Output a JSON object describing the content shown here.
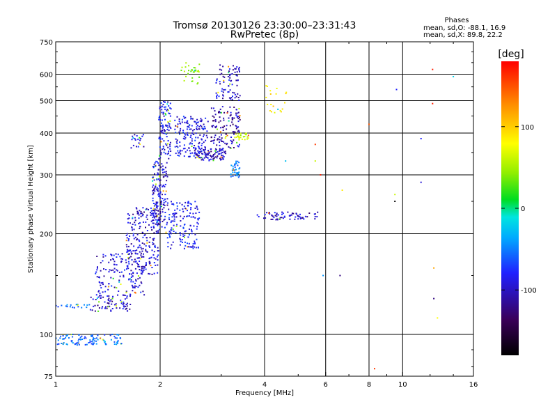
{
  "chart_data": {
    "type": "scatter",
    "title": "Tromsø 20130126 23:30:00–23:31:43",
    "subtitle": "RwPretec (8p)",
    "xlabel": "Frequency [MHz]",
    "ylabel": "Stationary phase Virtual Height [km]",
    "x_scale": "log",
    "y_scale": "log",
    "xlim": [
      1,
      16
    ],
    "ylim": [
      75,
      750
    ],
    "x_ticks": [
      1,
      2,
      4,
      6,
      8,
      10,
      16
    ],
    "y_ticks": [
      75,
      100,
      200,
      300,
      400,
      500,
      600,
      750
    ],
    "x_tick_labels": [
      "1",
      "2",
      "4",
      "6",
      "8",
      "10",
      "16"
    ],
    "y_tick_labels": [
      "75",
      "100",
      "200",
      "300",
      "400",
      "500",
      "600",
      "750"
    ],
    "grid": true,
    "phase_info": {
      "heading": "Phases",
      "line1": "mean, sd,O: -88.1, 16.9",
      "line2": "mean, sd,X:  89.8, 22.2"
    },
    "colorbar": {
      "label": "[deg]",
      "min": -180,
      "max": 180,
      "ticks": [
        100,
        0,
        -100
      ],
      "tick_labels": [
        "100",
        "0",
        "-100"
      ]
    },
    "series": [
      {
        "clusters": [
          {
            "x": [
              1.0,
              1.55
            ],
            "y": [
              93,
              100
            ],
            "n": 110,
            "phase": -75
          },
          {
            "x": [
              1.0,
              1.25
            ],
            "y": [
              120,
              123
            ],
            "n": 20,
            "phase": -75
          },
          {
            "x": [
              1.25,
              1.65
            ],
            "y": [
              117,
              130
            ],
            "n": 70,
            "phase": -115
          },
          {
            "x": [
              1.3,
              1.8
            ],
            "y": [
              130,
              175
            ],
            "n": 160,
            "phase": -110
          },
          {
            "x": [
              1.6,
              1.98
            ],
            "y": [
              150,
              240
            ],
            "n": 220,
            "phase": -112
          },
          {
            "x": [
              1.9,
              2.1
            ],
            "y": [
              200,
              330
            ],
            "n": 170,
            "phase": -110
          },
          {
            "x": [
              1.98,
              2.15
            ],
            "y": [
              330,
              500
            ],
            "n": 110,
            "phase": -105
          },
          {
            "x": [
              2.1,
              2.6
            ],
            "y": [
              180,
              250
            ],
            "n": 150,
            "phase": -100
          },
          {
            "x": [
              2.2,
              2.75
            ],
            "y": [
              340,
              450
            ],
            "n": 170,
            "phase": -105
          },
          {
            "x": [
              2.5,
              3.1
            ],
            "y": [
              330,
              360
            ],
            "n": 90,
            "phase": -115
          },
          {
            "x": [
              2.8,
              3.4
            ],
            "y": [
              360,
              480
            ],
            "n": 130,
            "phase": -120
          },
          {
            "x": [
              2.9,
              3.4
            ],
            "y": [
              500,
              640
            ],
            "n": 80,
            "phase": -110
          },
          {
            "x": [
              3.2,
              3.4
            ],
            "y": [
              295,
              330
            ],
            "n": 35,
            "phase": -65
          },
          {
            "x": [
              3.3,
              3.6
            ],
            "y": [
              380,
              400
            ],
            "n": 25,
            "phase": 60
          },
          {
            "x": [
              2.3,
              2.6
            ],
            "y": [
              560,
              650
            ],
            "n": 30,
            "phase": 40
          },
          {
            "x": [
              3.8,
              5.7
            ],
            "y": [
              220,
              232
            ],
            "n": 70,
            "phase": -115
          },
          {
            "x": [
              1.65,
              1.8
            ],
            "y": [
              360,
              400
            ],
            "n": 20,
            "phase": -110
          },
          {
            "x": [
              4.0,
              4.7
            ],
            "y": [
              460,
              560
            ],
            "n": 20,
            "phase": 90
          }
        ],
        "scattered_points": [
          {
            "x": 8.3,
            "y": 79,
            "phase": 160
          },
          {
            "x": 8.0,
            "y": 425,
            "phase": 150
          },
          {
            "x": 9.5,
            "y": 250,
            "phase": -180
          },
          {
            "x": 9.5,
            "y": 262,
            "phase": 60
          },
          {
            "x": 9.6,
            "y": 540,
            "phase": -100
          },
          {
            "x": 11.3,
            "y": 385,
            "phase": -100
          },
          {
            "x": 11.3,
            "y": 285,
            "phase": -110
          },
          {
            "x": 12.2,
            "y": 620,
            "phase": 170
          },
          {
            "x": 12.2,
            "y": 490,
            "phase": 170
          },
          {
            "x": 12.3,
            "y": 158,
            "phase": 120
          },
          {
            "x": 12.3,
            "y": 128,
            "phase": -130
          },
          {
            "x": 12.6,
            "y": 112,
            "phase": 80
          },
          {
            "x": 14.0,
            "y": 590,
            "phase": -30
          },
          {
            "x": 5.6,
            "y": 370,
            "phase": 160
          },
          {
            "x": 5.8,
            "y": 300,
            "phase": 170
          },
          {
            "x": 6.6,
            "y": 150,
            "phase": -130
          },
          {
            "x": 5.9,
            "y": 150,
            "phase": -60
          },
          {
            "x": 6.7,
            "y": 270,
            "phase": 90
          },
          {
            "x": 4.6,
            "y": 330,
            "phase": -40
          },
          {
            "x": 5.6,
            "y": 330,
            "phase": 60
          }
        ]
      }
    ]
  }
}
